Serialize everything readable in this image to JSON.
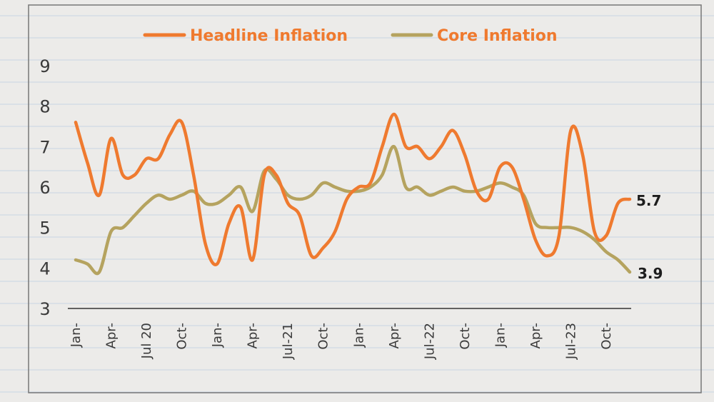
{
  "chart_data": {
    "type": "line",
    "title": "",
    "xlabel": "",
    "ylabel": "",
    "ylim": [
      3,
      9
    ],
    "yticks": [
      "9",
      "8",
      "7",
      "6",
      "5",
      "4",
      "3"
    ],
    "xtick_labels": [
      "Jan-",
      "Apr-",
      "Jul 20",
      "Oct-",
      "Jan-",
      "Apr-",
      "Jul-21",
      "Oct-",
      "Jan-",
      "Apr-",
      "Jul-22",
      "Oct-",
      "Jan-",
      "Apr-",
      "Jul-23",
      "Oct-"
    ],
    "x": [
      "Jan-20",
      "Feb-20",
      "Mar-20",
      "Apr-20",
      "May-20",
      "Jun-20",
      "Jul-20",
      "Aug-20",
      "Sep-20",
      "Oct-20",
      "Nov-20",
      "Dec-20",
      "Jan-21",
      "Feb-21",
      "Mar-21",
      "Apr-21",
      "May-21",
      "Jun-21",
      "Jul-21",
      "Aug-21",
      "Sep-21",
      "Oct-21",
      "Nov-21",
      "Dec-21",
      "Jan-22",
      "Feb-22",
      "Mar-22",
      "Apr-22",
      "May-22",
      "Jun-22",
      "Jul-22",
      "Aug-22",
      "Sep-22",
      "Oct-22",
      "Nov-22",
      "Dec-22",
      "Jan-23",
      "Feb-23",
      "Mar-23",
      "Apr-23",
      "May-23",
      "Jun-23",
      "Jul-23",
      "Aug-23",
      "Sep-23",
      "Oct-23",
      "Nov-23",
      "Dec-23"
    ],
    "series": [
      {
        "name": "Headline Inflation",
        "color": "#ef7a2f",
        "values": [
          7.6,
          6.6,
          5.8,
          7.2,
          6.3,
          6.3,
          6.7,
          6.7,
          7.3,
          7.6,
          6.3,
          4.6,
          4.1,
          5.1,
          5.5,
          4.2,
          6.3,
          6.3,
          5.6,
          5.3,
          4.3,
          4.5,
          4.9,
          5.7,
          6.0,
          6.1,
          7.0,
          7.8,
          7.0,
          7.0,
          6.7,
          7.0,
          7.4,
          6.8,
          5.9,
          5.7,
          6.5,
          6.5,
          5.7,
          4.7,
          4.3,
          4.8,
          7.4,
          6.8,
          4.9,
          4.8,
          5.6,
          5.7
        ]
      },
      {
        "name": "Core Inflation",
        "color": "#b5a35f",
        "values": [
          4.2,
          4.1,
          3.9,
          4.9,
          5.0,
          5.3,
          5.6,
          5.8,
          5.7,
          5.8,
          5.9,
          5.6,
          5.6,
          5.8,
          6.0,
          5.4,
          6.4,
          6.2,
          5.8,
          5.7,
          5.8,
          6.1,
          6.0,
          5.9,
          5.9,
          6.0,
          6.3,
          7.0,
          6.0,
          6.0,
          5.8,
          5.9,
          6.0,
          5.9,
          5.9,
          6.0,
          6.1,
          6.0,
          5.8,
          5.1,
          5.0,
          5.0,
          5.0,
          4.9,
          4.7,
          4.4,
          4.2,
          3.9
        ]
      }
    ],
    "end_labels": [
      "5.7",
      "3.9"
    ],
    "legend": [
      "Headline Inflation",
      "Core Inflation"
    ],
    "legend_position": "top",
    "grid": false
  },
  "colors": {
    "headline": "#ef7a2f",
    "core": "#b5a35f",
    "axis": "#333333",
    "background": "#ecebe9",
    "ruled_lines": "#c9d4e3"
  }
}
